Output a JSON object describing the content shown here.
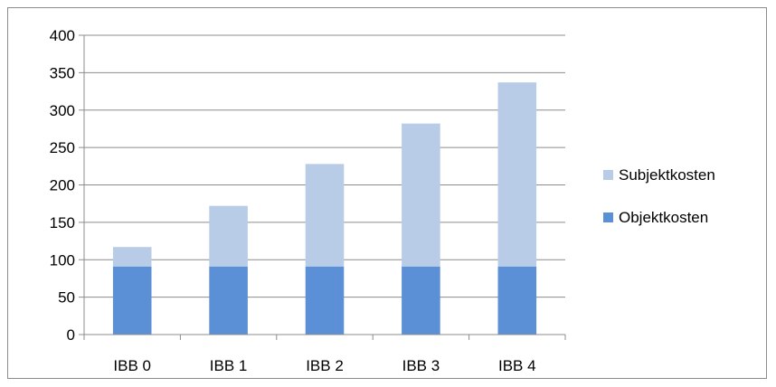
{
  "chart_data": {
    "type": "bar",
    "stacked": true,
    "categories": [
      "IBB 0",
      "IBB 1",
      "IBB 2",
      "IBB 3",
      "IBB 4"
    ],
    "series": [
      {
        "name": "Objektkosten",
        "values": [
          91,
          91,
          91,
          91,
          91
        ],
        "color": "#5b8fd6"
      },
      {
        "name": "Subjektkosten",
        "values": [
          26,
          81,
          137,
          191,
          246
        ],
        "color": "#b8cce8"
      }
    ],
    "ylim": [
      0,
      400
    ],
    "yticks": [
      0,
      50,
      100,
      150,
      200,
      250,
      300,
      350,
      400
    ],
    "grid": true,
    "legend": {
      "placement": "right",
      "order": [
        "Subjektkosten",
        "Objektkosten"
      ]
    }
  }
}
